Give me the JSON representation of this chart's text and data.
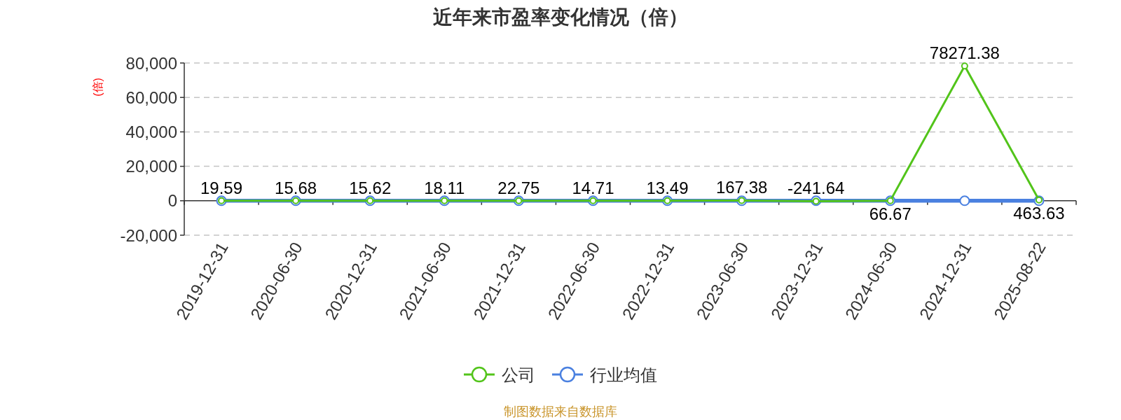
{
  "chart_data": {
    "type": "line",
    "title": "近年来市盈率变化情况（倍）",
    "ylabel": "(倍)",
    "categories": [
      "2019-12-31",
      "2020-06-30",
      "2020-12-31",
      "2021-06-30",
      "2021-12-31",
      "2022-06-30",
      "2022-12-31",
      "2023-06-30",
      "2023-12-31",
      "2024-06-30",
      "2024-12-31",
      "2025-08-22"
    ],
    "series": [
      {
        "name": "公司",
        "color": "#52c41a",
        "values": [
          19.59,
          15.68,
          15.62,
          18.11,
          22.75,
          14.71,
          13.49,
          167.38,
          -241.64,
          66.67,
          78271.38,
          463.63
        ],
        "value_labels": [
          "19.59",
          "15.68",
          "15.62",
          "18.11",
          "22.75",
          "14.71",
          "13.49",
          "167.38",
          "-241.64",
          "66.67",
          "78271.38",
          "463.63"
        ]
      },
      {
        "name": "行业均值",
        "color": "#4a80e0",
        "values": [
          0,
          0,
          0,
          0,
          0,
          0,
          0,
          0,
          0,
          0,
          0,
          0
        ]
      }
    ],
    "ylim": [
      -20000,
      80000
    ],
    "yticks": [
      {
        "value": -20000,
        "label": "-20,000"
      },
      0,
      {
        "value": 20000,
        "label": "20,000"
      },
      {
        "value": 40000,
        "label": "40,000"
      },
      {
        "value": 60000,
        "label": "60,000"
      },
      {
        "value": 80000,
        "label": "80,000"
      }
    ],
    "grid": "y",
    "legend": "bottom",
    "marker": "circle",
    "line_style": "solid",
    "annotations": [
      "制图数据来自数据库"
    ]
  }
}
